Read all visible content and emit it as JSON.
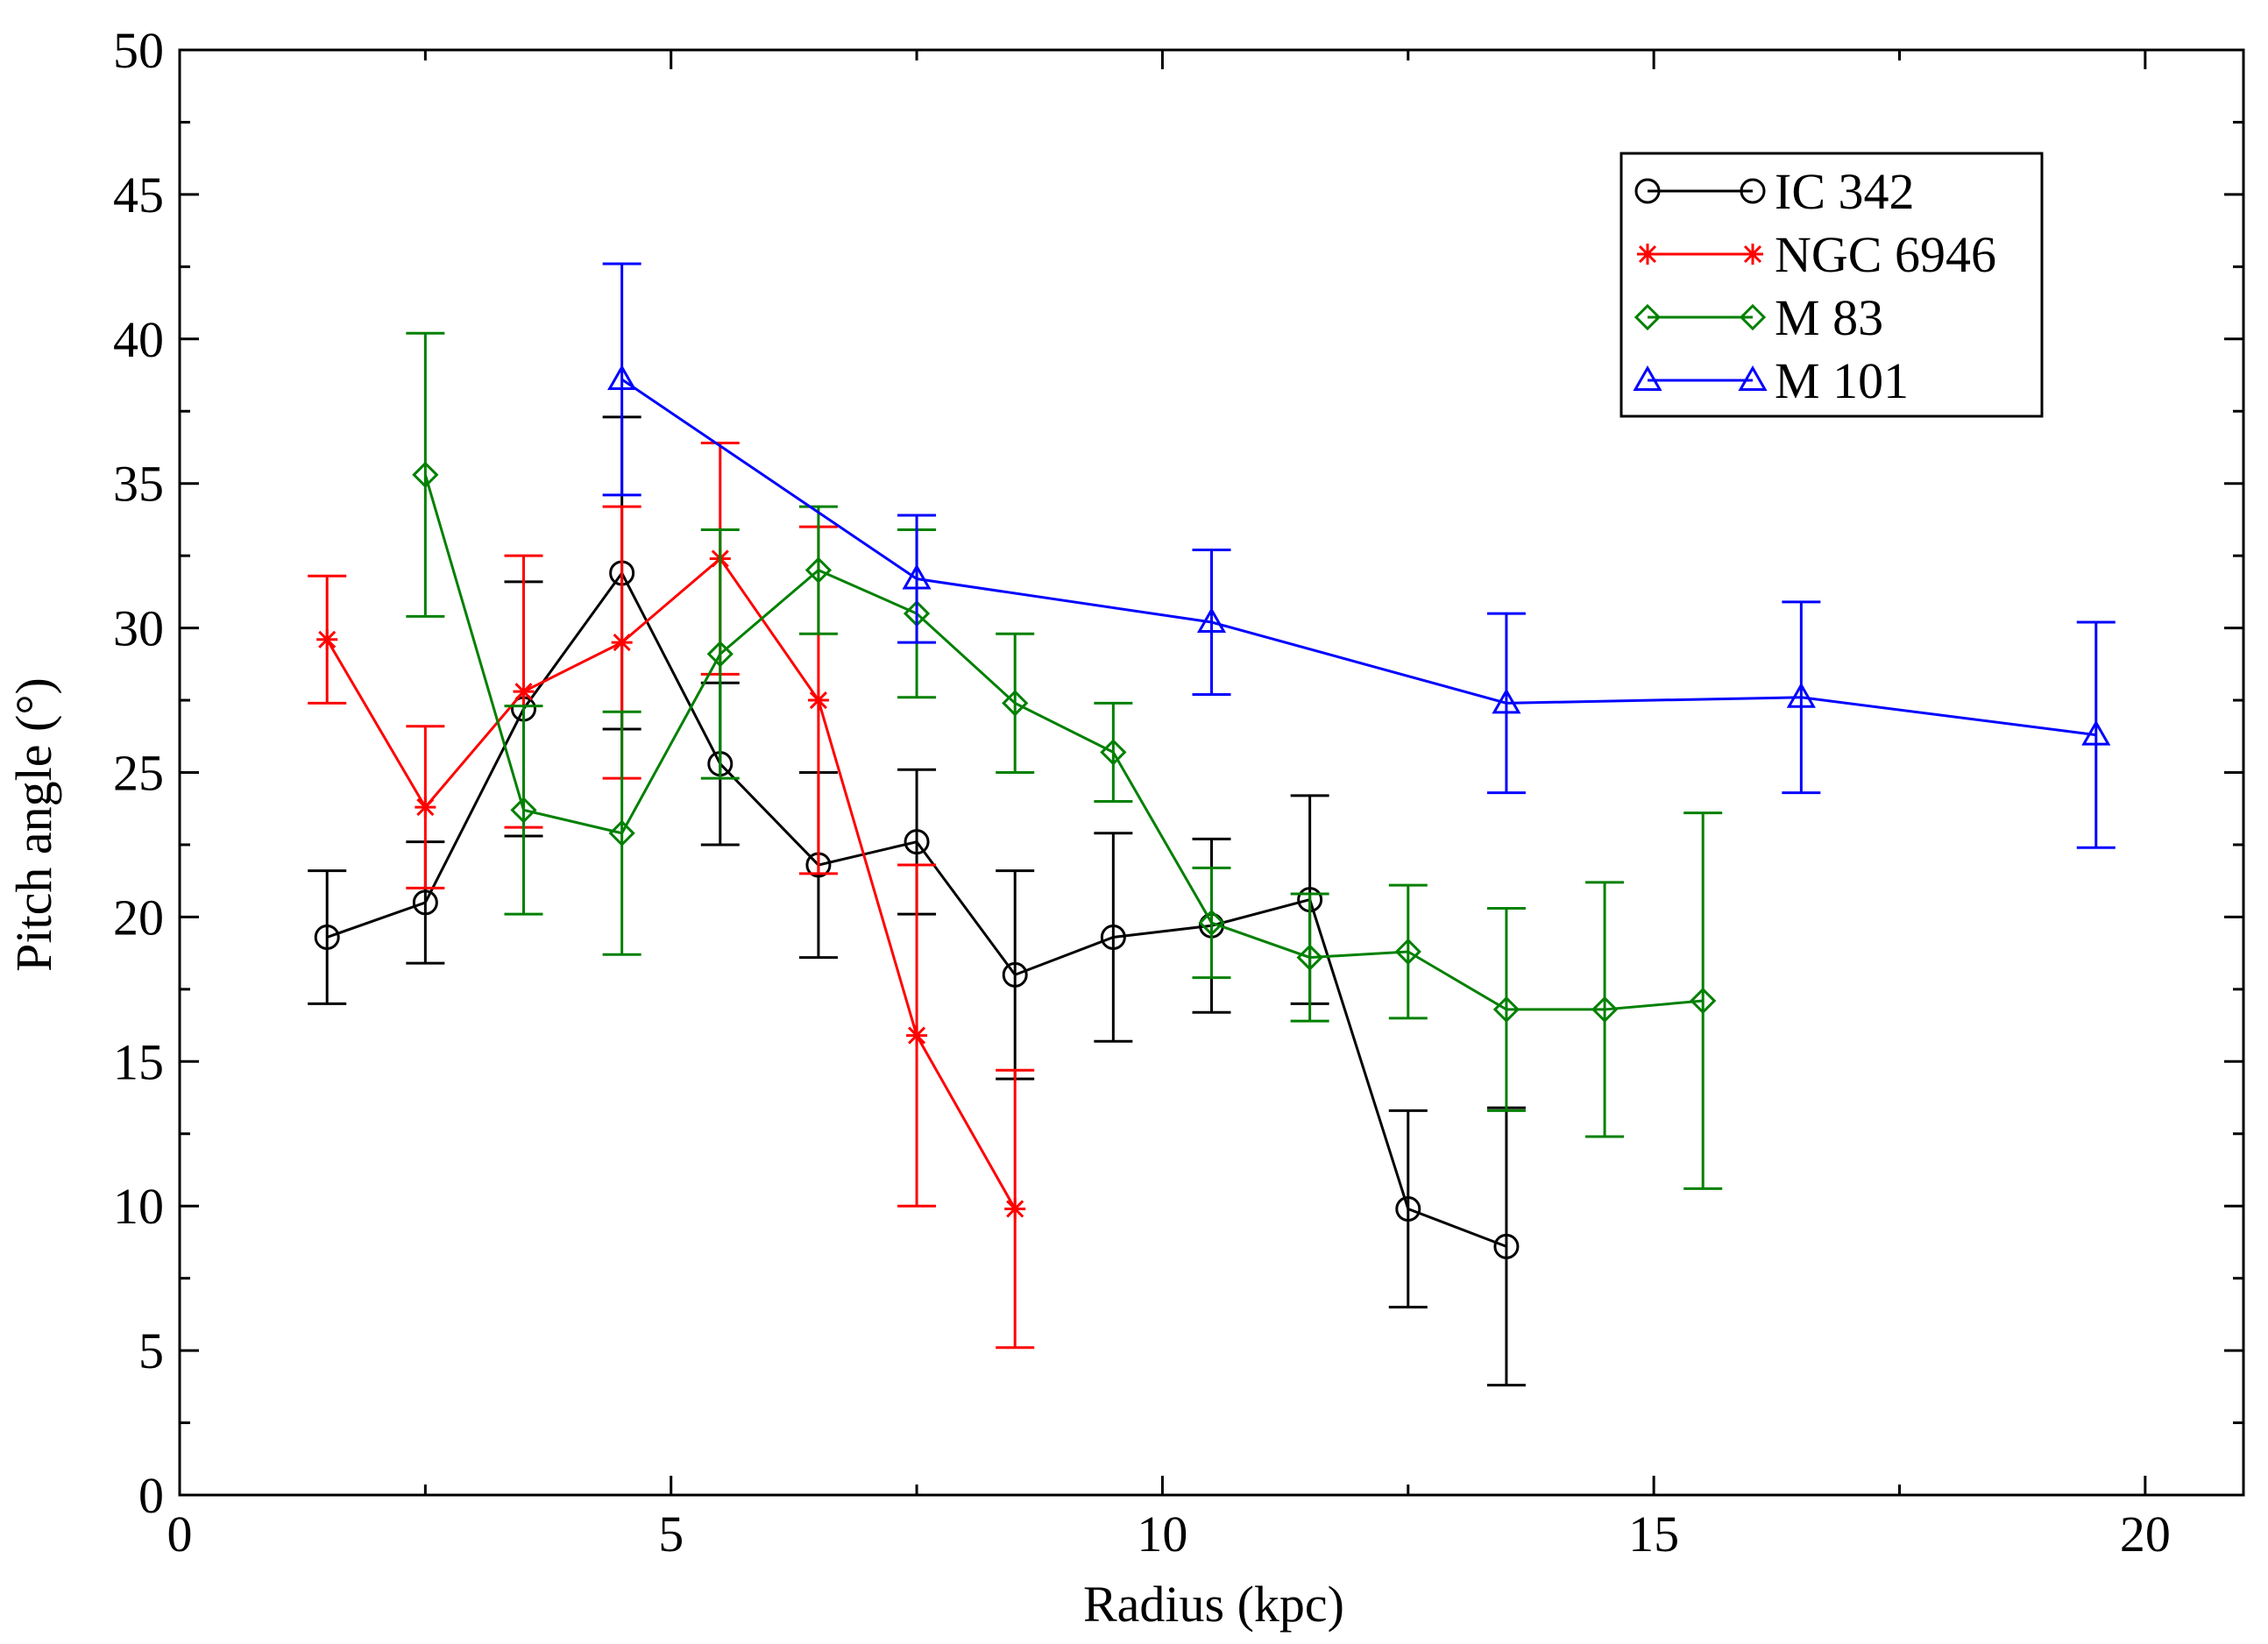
{
  "chart_data": {
    "type": "line",
    "title": "",
    "xlabel": "Radius  (kpc)",
    "ylabel": "Pitch angle  (°)",
    "xlim": [
      0,
      21
    ],
    "ylim": [
      0,
      50
    ],
    "xticks": [
      0,
      5,
      10,
      15,
      20
    ],
    "yticks": [
      0,
      5,
      10,
      15,
      20,
      25,
      30,
      35,
      40,
      45,
      50
    ],
    "grid": false,
    "legend_position": "top-right",
    "series": [
      {
        "name": "IC 342",
        "color": "#000000",
        "marker": "circle",
        "x": [
          1.5,
          2.5,
          3.5,
          4.5,
          5.5,
          6.5,
          7.5,
          8.5,
          9.5,
          10.5,
          11.5,
          12.5,
          13.5
        ],
        "y": [
          19.3,
          20.5,
          27.2,
          31.9,
          25.3,
          21.8,
          22.6,
          18.0,
          19.3,
          19.7,
          20.6,
          9.9,
          8.6
        ],
        "err_low": [
          17.0,
          18.4,
          22.8,
          26.5,
          22.5,
          18.6,
          20.1,
          14.4,
          15.7,
          16.7,
          17.0,
          6.5,
          3.8
        ],
        "err_high": [
          21.6,
          22.6,
          31.6,
          37.3,
          28.1,
          25.0,
          25.1,
          21.6,
          22.9,
          22.7,
          24.2,
          13.3,
          13.4
        ]
      },
      {
        "name": "NGC 6946",
        "color": "#ff0000",
        "marker": "star",
        "x": [
          1.5,
          2.5,
          3.5,
          4.5,
          5.5,
          6.5,
          7.5,
          8.5
        ],
        "y": [
          29.6,
          23.8,
          27.8,
          29.5,
          32.4,
          27.5,
          15.9,
          9.9
        ],
        "err_low": [
          27.4,
          21.0,
          23.1,
          24.8,
          28.4,
          21.5,
          10.0,
          5.1
        ],
        "err_high": [
          31.8,
          26.6,
          32.5,
          34.2,
          36.4,
          33.5,
          21.8,
          14.7
        ]
      },
      {
        "name": "M 83",
        "color": "#008000",
        "marker": "diamond",
        "x": [
          2.5,
          3.5,
          4.5,
          5.5,
          6.5,
          7.5,
          8.5,
          9.5,
          10.5,
          11.5,
          12.5,
          13.5,
          14.5,
          15.5
        ],
        "y": [
          35.3,
          23.7,
          22.9,
          29.1,
          32.0,
          30.5,
          27.4,
          25.7,
          19.8,
          18.6,
          18.8,
          16.8,
          16.8,
          17.1
        ],
        "err_low": [
          30.4,
          20.1,
          18.7,
          24.8,
          29.8,
          27.6,
          25.0,
          24.0,
          17.9,
          16.4,
          16.5,
          13.3,
          12.4,
          10.6
        ],
        "err_high": [
          40.2,
          27.3,
          27.1,
          33.4,
          34.2,
          33.4,
          29.8,
          27.4,
          21.7,
          20.8,
          21.1,
          20.3,
          21.2,
          23.6
        ]
      },
      {
        "name": "M 101",
        "color": "#0000ff",
        "marker": "triangle",
        "x": [
          4.5,
          7.5,
          10.5,
          13.5,
          16.5,
          19.5
        ],
        "y": [
          38.6,
          31.7,
          30.2,
          27.4,
          27.6,
          26.3
        ],
        "err_low": [
          34.6,
          29.5,
          27.7,
          24.3,
          24.3,
          22.4
        ],
        "err_high": [
          42.6,
          33.9,
          32.7,
          30.5,
          30.9,
          30.2
        ]
      }
    ]
  }
}
